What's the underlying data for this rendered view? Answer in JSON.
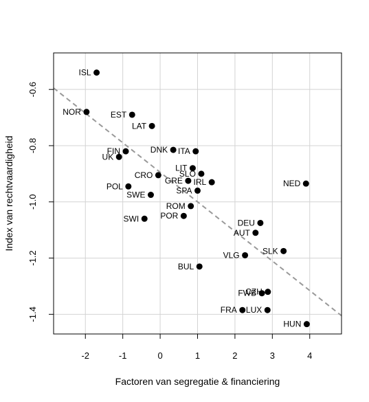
{
  "chart_data": {
    "type": "scatter",
    "title": "",
    "xlabel": "Factoren van segregatie & financiering",
    "ylabel": "Index van rechtvaardigheid",
    "xlim": [
      -2.85,
      4.85
    ],
    "ylim": [
      -1.47,
      -0.47
    ],
    "x_ticks": [
      -2,
      -1,
      0,
      1,
      2,
      3,
      4
    ],
    "x_tick_labels": [
      "-2",
      "-1",
      "0",
      "1",
      "2",
      "3",
      "4"
    ],
    "y_ticks": [
      -0.6,
      -0.8,
      -1.0,
      -1.2,
      -1.4
    ],
    "y_tick_labels": [
      "-0.6",
      "-0.8",
      "-1.0",
      "-1.2",
      "-1.4"
    ],
    "grid": true,
    "legend": "none",
    "point_color": "#000000",
    "trend_color": "#999999",
    "trend_line": {
      "x": [
        -2.85,
        4.85
      ],
      "y": [
        -0.595,
        -1.405
      ]
    },
    "points": [
      {
        "label": "ISL",
        "x": -1.7,
        "y": -0.54,
        "side": "left"
      },
      {
        "label": "NOR",
        "x": -1.97,
        "y": -0.68,
        "side": "left"
      },
      {
        "label": "EST",
        "x": -0.75,
        "y": -0.69,
        "side": "left"
      },
      {
        "label": "LAT",
        "x": -0.22,
        "y": -0.73,
        "side": "left"
      },
      {
        "label": "DNK",
        "x": 0.35,
        "y": -0.815,
        "side": "left"
      },
      {
        "label": "ITA",
        "x": 0.95,
        "y": -0.82,
        "side": "left"
      },
      {
        "label": "FIN",
        "x": -0.92,
        "y": -0.82,
        "side": "left"
      },
      {
        "label": "UK",
        "x": -1.1,
        "y": -0.84,
        "side": "left"
      },
      {
        "label": "LIT",
        "x": 0.87,
        "y": -0.88,
        "side": "left"
      },
      {
        "label": "SLO",
        "x": 1.1,
        "y": -0.9,
        "side": "left"
      },
      {
        "label": "CRO",
        "x": -0.05,
        "y": -0.905,
        "side": "left"
      },
      {
        "label": "GRE",
        "x": 0.75,
        "y": -0.925,
        "side": "left"
      },
      {
        "label": "IRL",
        "x": 1.38,
        "y": -0.93,
        "side": "left"
      },
      {
        "label": "NED",
        "x": 3.9,
        "y": -0.935,
        "side": "left"
      },
      {
        "label": "POL",
        "x": -0.85,
        "y": -0.945,
        "side": "left"
      },
      {
        "label": "SPA",
        "x": 1.0,
        "y": -0.96,
        "side": "left"
      },
      {
        "label": "SWE",
        "x": -0.25,
        "y": -0.975,
        "side": "left"
      },
      {
        "label": "ROM",
        "x": 0.82,
        "y": -1.015,
        "side": "left"
      },
      {
        "label": "POR",
        "x": 0.63,
        "y": -1.05,
        "side": "left"
      },
      {
        "label": "SWI",
        "x": -0.42,
        "y": -1.06,
        "side": "left"
      },
      {
        "label": "DEU",
        "x": 2.68,
        "y": -1.075,
        "side": "left"
      },
      {
        "label": "AUT",
        "x": 2.55,
        "y": -1.11,
        "side": "left"
      },
      {
        "label": "SLK",
        "x": 3.3,
        "y": -1.175,
        "side": "left"
      },
      {
        "label": "VLG",
        "x": 2.27,
        "y": -1.19,
        "side": "left"
      },
      {
        "label": "BUL",
        "x": 1.05,
        "y": -1.23,
        "side": "left"
      },
      {
        "label": "CZH",
        "x": 2.88,
        "y": -1.32,
        "side": "left"
      },
      {
        "label": "FWB",
        "x": 2.72,
        "y": -1.325,
        "side": "left"
      },
      {
        "label": "FRA",
        "x": 2.2,
        "y": -1.385,
        "side": "left"
      },
      {
        "label": "LUX",
        "x": 2.87,
        "y": -1.385,
        "side": "left"
      },
      {
        "label": "HUN",
        "x": 3.92,
        "y": -1.435,
        "side": "left"
      }
    ]
  }
}
